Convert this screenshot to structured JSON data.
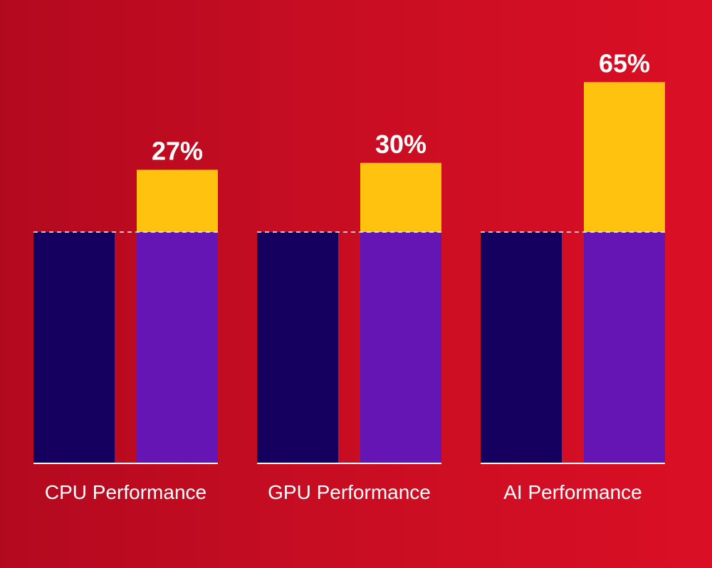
{
  "chart_data": {
    "type": "bar",
    "categories": [
      "CPU Performance",
      "GPU Performance",
      "AI Performance"
    ],
    "baseline": 100,
    "improvements": [
      27,
      30,
      65
    ],
    "improvement_labels": [
      "27%",
      "30%",
      "65%"
    ],
    "colors": {
      "background_start": "#b3091f",
      "background_end": "#da0f25",
      "baseline_bar": "#150060",
      "new_bar": "#6615b5",
      "gain_segment": "#ffc20e",
      "label_text": "#ffffff",
      "axis_line": "#ffffff"
    },
    "grid": false,
    "legend": "none"
  }
}
